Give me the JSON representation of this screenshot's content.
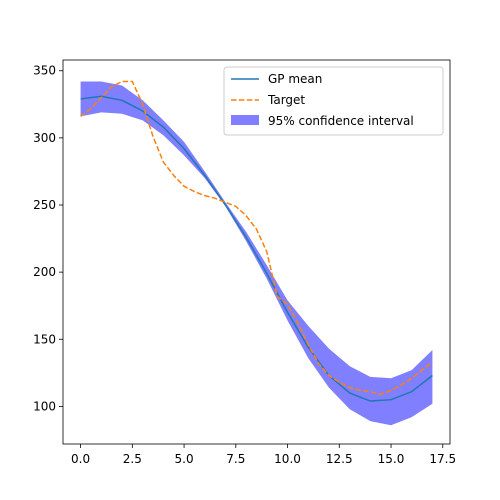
{
  "chart_data": {
    "type": "line",
    "xlim": [
      -0.85,
      17.85
    ],
    "ylim": [
      72,
      358
    ],
    "xticks": [
      0.0,
      2.5,
      5.0,
      7.5,
      10.0,
      12.5,
      15.0,
      17.5
    ],
    "xtick_labels": [
      "0.0",
      "2.5",
      "5.0",
      "7.5",
      "10.0",
      "12.5",
      "15.0",
      "17.5"
    ],
    "yticks": [
      100,
      150,
      200,
      250,
      300,
      350
    ],
    "ytick_labels": [
      "100",
      "150",
      "200",
      "250",
      "300",
      "350"
    ],
    "grid": false,
    "legend_position": "top-right",
    "x": [
      0,
      1,
      2,
      3,
      4,
      5,
      6,
      7,
      8,
      9,
      10,
      11,
      12,
      13,
      14,
      15,
      16,
      17
    ],
    "series": [
      {
        "name": "GP mean",
        "style": "solid",
        "color": "#1f77b4",
        "values": [
          329,
          331,
          328,
          320,
          308,
          292,
          272,
          250,
          226,
          199,
          170,
          144,
          123,
          110,
          104,
          105,
          111,
          123
        ]
      },
      {
        "name": "Target",
        "style": "dashed",
        "color": "#ff7f0e",
        "x": [
          0,
          0.5,
          1,
          1.5,
          2,
          2.5,
          3,
          3.5,
          4,
          4.5,
          5,
          5.5,
          6,
          6.5,
          7,
          7.5,
          8,
          8.5,
          9,
          9.5,
          10,
          10.5,
          11,
          11.5,
          12,
          12.5,
          13,
          13.5,
          14,
          14.5,
          15,
          15.5,
          16,
          16.5,
          17
        ],
        "values": [
          316,
          322,
          330,
          338,
          342,
          342,
          325,
          301,
          282,
          272,
          264,
          260,
          257,
          255,
          252,
          249,
          242,
          232,
          215,
          182,
          176,
          162,
          146,
          132,
          123,
          118,
          114,
          112,
          111,
          109,
          112,
          116,
          121,
          127,
          133
        ]
      }
    ],
    "band": {
      "name": "95% confidence interval",
      "color": "#0000ff",
      "lower": [
        316,
        319,
        318,
        313,
        302,
        287,
        270,
        249,
        223,
        195,
        164,
        136,
        114,
        98,
        89,
        86,
        92,
        102
      ],
      "upper": [
        342,
        342,
        339,
        328,
        313,
        297,
        275,
        252,
        230,
        205,
        179,
        160,
        143,
        130,
        122,
        121,
        127,
        142
      ]
    }
  }
}
